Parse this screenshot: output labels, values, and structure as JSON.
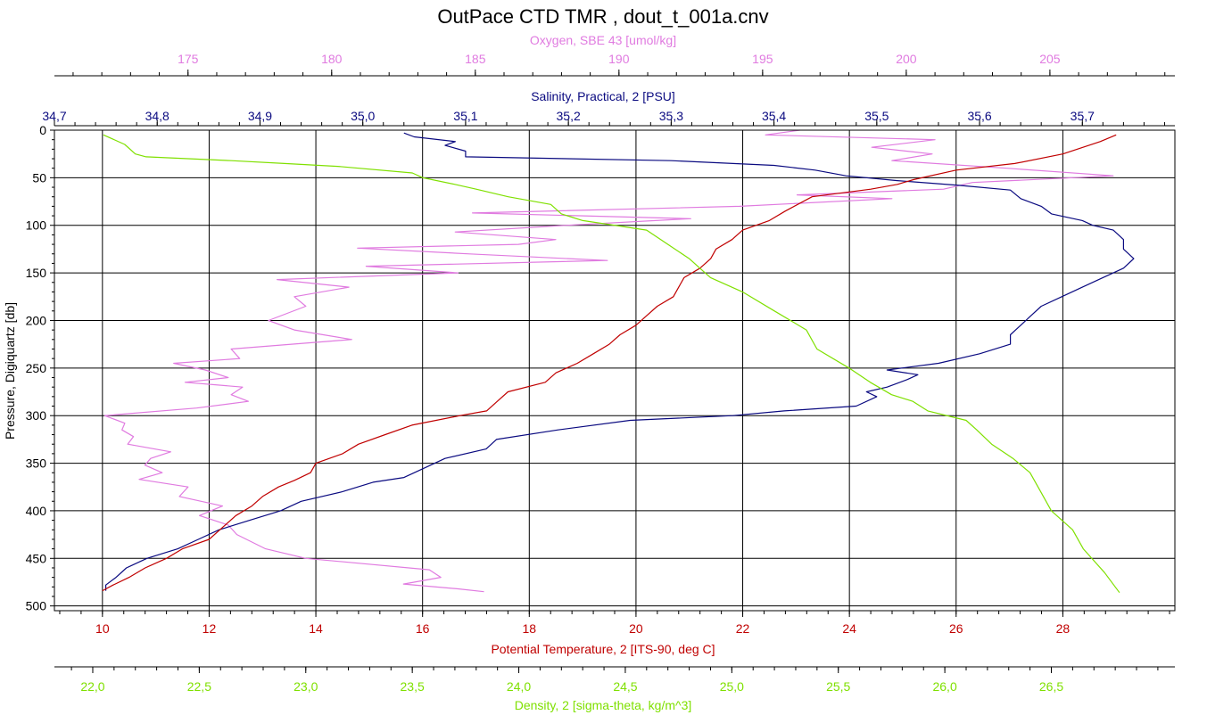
{
  "chart_data": {
    "type": "line",
    "title": "OutPace CTD TMR , dout_t_001a.cnv",
    "y_axis": {
      "label": "Pressure, Digiquartz [db]",
      "range": [
        0,
        505
      ],
      "ticks": [
        0,
        50,
        100,
        150,
        200,
        250,
        300,
        350,
        400,
        450,
        500
      ],
      "inverted": true
    },
    "grid": true,
    "axes": [
      {
        "key": "oxygen",
        "label": "Oxygen, SBE 43 [umol/kg]",
        "color": "#e07be0",
        "position": "top-outer",
        "range": [
          170.35,
          209.35
        ],
        "ticks": [
          175,
          180,
          185,
          190,
          195,
          200,
          205
        ],
        "tick_labels": [
          "175",
          "180",
          "185",
          "190",
          "195",
          "200",
          "205"
        ]
      },
      {
        "key": "salinity",
        "label": "Salinity, Practical, 2 [PSU]",
        "color": "#0a0a80",
        "position": "top-inner",
        "range": [
          34.7,
          35.79
        ],
        "ticks": [
          34.7,
          34.8,
          34.9,
          35.0,
          35.1,
          35.2,
          35.3,
          35.4,
          35.5,
          35.6,
          35.7
        ],
        "tick_labels": [
          "34,7",
          "34,8",
          "34,9",
          "35,0",
          "35,1",
          "35,2",
          "35,3",
          "35,4",
          "35,5",
          "35,6",
          "35,7"
        ]
      },
      {
        "key": "temperature",
        "label": "Potential Temperature, 2 [ITS-90, deg C]",
        "color": "#c00000",
        "position": "bottom-inner",
        "range": [
          9.1,
          30.1
        ],
        "ticks": [
          10,
          12,
          14,
          16,
          18,
          20,
          22,
          24,
          26,
          28
        ],
        "tick_labels": [
          "10",
          "12",
          "14",
          "16",
          "18",
          "20",
          "22",
          "24",
          "26",
          "28"
        ]
      },
      {
        "key": "density",
        "label": "Density, 2 [sigma-theta, kg/m^3]",
        "color": "#7fe000",
        "position": "bottom-outer",
        "range": [
          21.82,
          27.08
        ],
        "ticks": [
          22.0,
          22.5,
          23.0,
          23.5,
          24.0,
          24.5,
          25.0,
          25.5,
          26.0,
          26.5
        ],
        "tick_labels": [
          "22,0",
          "22,5",
          "23,0",
          "23,5",
          "24,0",
          "24,5",
          "25,0",
          "25,5",
          "26,0",
          "26,5"
        ]
      }
    ],
    "series": [
      {
        "name": "Oxygen, SBE 43 [umol/kg]",
        "axis": "oxygen",
        "color": "#e07be0",
        "points": [
          [
            196.3,
            0
          ],
          [
            195.1,
            5
          ],
          [
            201.0,
            10
          ],
          [
            198.8,
            18
          ],
          [
            200.9,
            25
          ],
          [
            199.5,
            32
          ],
          [
            203.5,
            40
          ],
          [
            207.2,
            48
          ],
          [
            202.3,
            55
          ],
          [
            201.3,
            62
          ],
          [
            196.2,
            68
          ],
          [
            199.5,
            72
          ],
          [
            194.2,
            80
          ],
          [
            184.9,
            87
          ],
          [
            192.5,
            93
          ],
          [
            188.2,
            100
          ],
          [
            184.3,
            107
          ],
          [
            187.8,
            115
          ],
          [
            186.5,
            120
          ],
          [
            180.9,
            124
          ],
          [
            184.8,
            130
          ],
          [
            189.6,
            137
          ],
          [
            181.2,
            143
          ],
          [
            184.4,
            150
          ],
          [
            178.1,
            157
          ],
          [
            180.6,
            165
          ],
          [
            178.7,
            175
          ],
          [
            179.1,
            185
          ],
          [
            177.8,
            200
          ],
          [
            178.7,
            210
          ],
          [
            180.7,
            220
          ],
          [
            176.5,
            230
          ],
          [
            176.8,
            240
          ],
          [
            174.5,
            245
          ],
          [
            175.6,
            252
          ],
          [
            176.4,
            260
          ],
          [
            174.9,
            265
          ],
          [
            176.9,
            270
          ],
          [
            176.5,
            278
          ],
          [
            177.1,
            285
          ],
          [
            175.3,
            292
          ],
          [
            172.1,
            300
          ],
          [
            172.8,
            308
          ],
          [
            172.7,
            315
          ],
          [
            173.1,
            322
          ],
          [
            172.9,
            330
          ],
          [
            174.4,
            338
          ],
          [
            173.7,
            345
          ],
          [
            173.5,
            352
          ],
          [
            174.1,
            360
          ],
          [
            173.3,
            367
          ],
          [
            175.0,
            375
          ],
          [
            174.7,
            385
          ],
          [
            176.2,
            395
          ],
          [
            175.4,
            405
          ],
          [
            176.4,
            415
          ],
          [
            176.7,
            425
          ],
          [
            177.7,
            440
          ],
          [
            179.1,
            450
          ],
          [
            183.4,
            462
          ],
          [
            183.8,
            470
          ],
          [
            182.5,
            477
          ],
          [
            184.4,
            482
          ],
          [
            185.3,
            485
          ]
        ]
      },
      {
        "name": "Salinity, Practical, 2 [PSU]",
        "axis": "salinity",
        "color": "#0a0a80",
        "points": [
          [
            35.04,
            3
          ],
          [
            35.05,
            7
          ],
          [
            35.09,
            12
          ],
          [
            35.08,
            16
          ],
          [
            35.1,
            22
          ],
          [
            35.1,
            28
          ],
          [
            35.3,
            32
          ],
          [
            35.4,
            37
          ],
          [
            35.44,
            42
          ],
          [
            35.47,
            48
          ],
          [
            35.52,
            53
          ],
          [
            35.58,
            58
          ],
          [
            35.63,
            63
          ],
          [
            35.64,
            72
          ],
          [
            35.66,
            80
          ],
          [
            35.67,
            88
          ],
          [
            35.7,
            95
          ],
          [
            35.71,
            100
          ],
          [
            35.73,
            105
          ],
          [
            35.74,
            115
          ],
          [
            35.74,
            125
          ],
          [
            35.75,
            135
          ],
          [
            35.74,
            145
          ],
          [
            35.72,
            155
          ],
          [
            35.7,
            165
          ],
          [
            35.68,
            175
          ],
          [
            35.66,
            185
          ],
          [
            35.65,
            195
          ],
          [
            35.64,
            205
          ],
          [
            35.63,
            215
          ],
          [
            35.63,
            225
          ],
          [
            35.6,
            235
          ],
          [
            35.56,
            245
          ],
          [
            35.51,
            252
          ],
          [
            35.54,
            257
          ],
          [
            35.53,
            262
          ],
          [
            35.51,
            270
          ],
          [
            35.49,
            275
          ],
          [
            35.5,
            280
          ],
          [
            35.48,
            290
          ],
          [
            35.41,
            295
          ],
          [
            35.36,
            300
          ],
          [
            35.26,
            305
          ],
          [
            35.19,
            315
          ],
          [
            35.13,
            325
          ],
          [
            35.12,
            335
          ],
          [
            35.08,
            345
          ],
          [
            35.06,
            355
          ],
          [
            35.04,
            365
          ],
          [
            35.01,
            370
          ],
          [
            34.98,
            380
          ],
          [
            34.94,
            390
          ],
          [
            34.92,
            400
          ],
          [
            34.89,
            410
          ],
          [
            34.86,
            420
          ],
          [
            34.84,
            430
          ],
          [
            34.82,
            440
          ],
          [
            34.79,
            450
          ],
          [
            34.77,
            460
          ],
          [
            34.76,
            470
          ],
          [
            34.75,
            478
          ],
          [
            34.75,
            484
          ]
        ]
      },
      {
        "name": "Potential Temperature, 2 [ITS-90, deg C]",
        "axis": "temperature",
        "color": "#c00000",
        "points": [
          [
            29.0,
            5
          ],
          [
            28.7,
            12
          ],
          [
            28.0,
            25
          ],
          [
            27.1,
            35
          ],
          [
            26.0,
            42
          ],
          [
            25.2,
            52
          ],
          [
            24.9,
            57
          ],
          [
            24.4,
            62
          ],
          [
            23.3,
            70
          ],
          [
            22.8,
            85
          ],
          [
            22.5,
            95
          ],
          [
            22.0,
            105
          ],
          [
            21.8,
            115
          ],
          [
            21.5,
            125
          ],
          [
            21.4,
            135
          ],
          [
            21.2,
            145
          ],
          [
            20.9,
            155
          ],
          [
            20.8,
            165
          ],
          [
            20.7,
            175
          ],
          [
            20.4,
            185
          ],
          [
            20.2,
            195
          ],
          [
            20.0,
            205
          ],
          [
            19.7,
            215
          ],
          [
            19.5,
            225
          ],
          [
            19.2,
            235
          ],
          [
            18.9,
            245
          ],
          [
            18.5,
            255
          ],
          [
            18.3,
            265
          ],
          [
            17.6,
            275
          ],
          [
            17.4,
            285
          ],
          [
            17.2,
            295
          ],
          [
            16.7,
            300
          ],
          [
            15.8,
            310
          ],
          [
            15.3,
            320
          ],
          [
            14.8,
            330
          ],
          [
            14.5,
            340
          ],
          [
            14.0,
            350
          ],
          [
            13.9,
            360
          ],
          [
            13.6,
            368
          ],
          [
            13.3,
            375
          ],
          [
            13.0,
            385
          ],
          [
            12.8,
            395
          ],
          [
            12.5,
            405
          ],
          [
            12.2,
            420
          ],
          [
            12.0,
            430
          ],
          [
            11.5,
            440
          ],
          [
            11.2,
            450
          ],
          [
            10.8,
            460
          ],
          [
            10.5,
            470
          ],
          [
            10.2,
            478
          ],
          [
            10.0,
            484
          ]
        ]
      },
      {
        "name": "Density, 2 [sigma-theta, kg/m^3]",
        "axis": "density",
        "color": "#7fe000",
        "points": [
          [
            22.05,
            5
          ],
          [
            22.15,
            15
          ],
          [
            22.2,
            25
          ],
          [
            22.25,
            28
          ],
          [
            22.65,
            32
          ],
          [
            22.9,
            35
          ],
          [
            23.15,
            38
          ],
          [
            23.5,
            45
          ],
          [
            23.55,
            50
          ],
          [
            23.7,
            57
          ],
          [
            23.8,
            62
          ],
          [
            23.95,
            70
          ],
          [
            24.15,
            78
          ],
          [
            24.2,
            88
          ],
          [
            24.3,
            95
          ],
          [
            24.6,
            105
          ],
          [
            24.7,
            120
          ],
          [
            24.8,
            135
          ],
          [
            24.85,
            145
          ],
          [
            24.9,
            155
          ],
          [
            25.05,
            170
          ],
          [
            25.2,
            190
          ],
          [
            25.35,
            210
          ],
          [
            25.4,
            230
          ],
          [
            25.55,
            250
          ],
          [
            25.65,
            265
          ],
          [
            25.75,
            278
          ],
          [
            25.85,
            285
          ],
          [
            25.92,
            295
          ],
          [
            26.1,
            305
          ],
          [
            26.15,
            315
          ],
          [
            26.22,
            330
          ],
          [
            26.32,
            345
          ],
          [
            26.4,
            360
          ],
          [
            26.45,
            380
          ],
          [
            26.5,
            400
          ],
          [
            26.6,
            420
          ],
          [
            26.65,
            440
          ],
          [
            26.75,
            465
          ],
          [
            26.8,
            480
          ],
          [
            26.82,
            486
          ]
        ]
      }
    ]
  }
}
